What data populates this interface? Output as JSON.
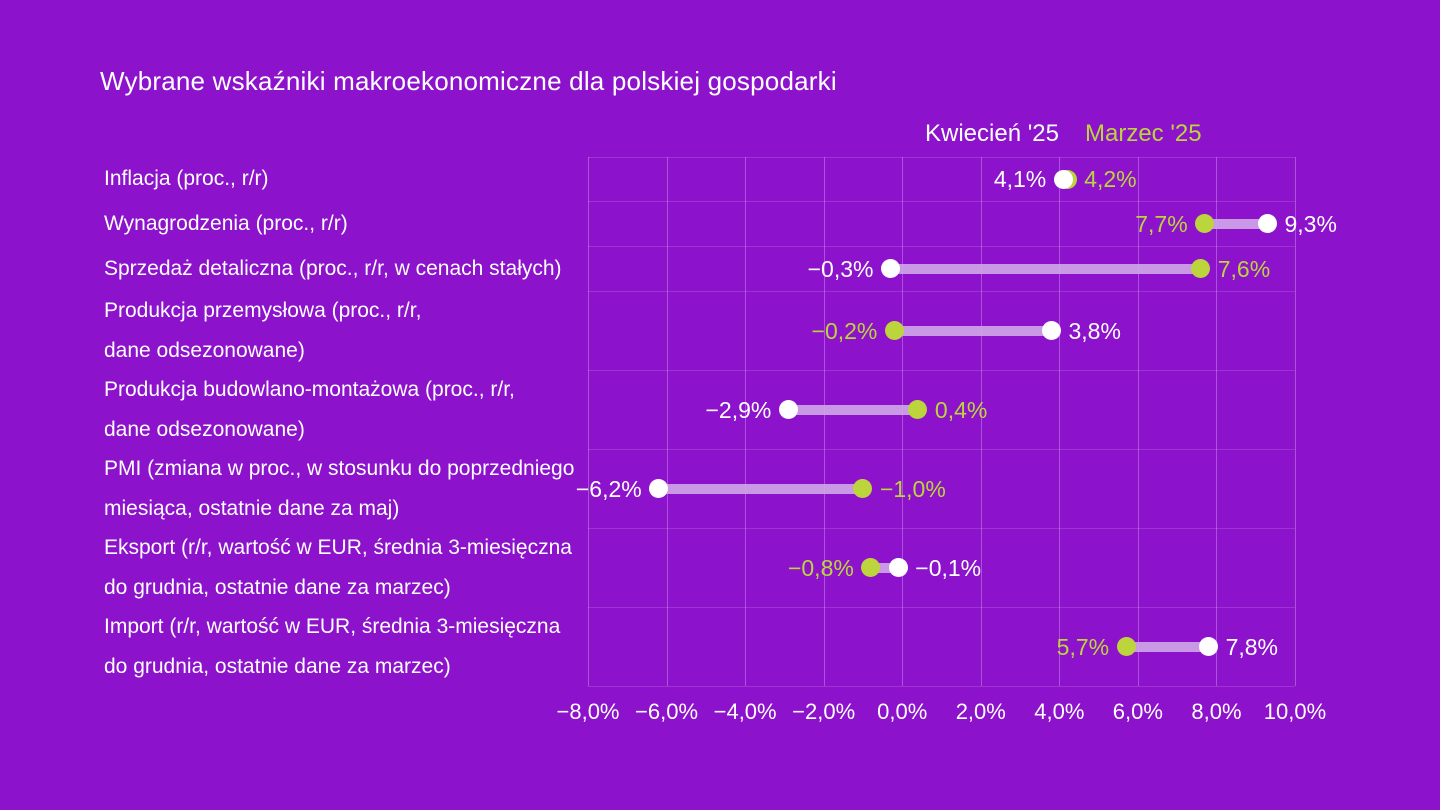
{
  "title": "Wybrane wskaźniki makroekonomiczne dla polskiej gospodarki",
  "legend": {
    "april_label": "Kwiecień '25",
    "march_label": "Marzec '25"
  },
  "colors": {
    "background": "#8c12cb",
    "april_dot": "#ffffff",
    "march_dot": "#bcd53d",
    "bar": "#cfa9e8",
    "text": "#ffffff"
  },
  "chart_data": {
    "type": "dumbbell",
    "title": "Wybrane wskaźniki makroekonomiczne dla polskiej gospodarki",
    "series": [
      "Kwiecień '25",
      "Marzec '25"
    ],
    "unit": "percent",
    "x_axis": {
      "min": -8,
      "max": 10,
      "step": 2,
      "tick_labels": [
        "−8,0%",
        "−6,0%",
        "−4,0%",
        "−2,0%",
        "0,0%",
        "2,0%",
        "4,0%",
        "6,0%",
        "8,0%",
        "10,0%"
      ]
    },
    "rows": [
      {
        "label_lines": [
          "Inflacja (proc., r/r)"
        ],
        "kwiecien": 4.1,
        "marzec": 4.2,
        "kwiecien_label": "4,1%",
        "marzec_label": "4,2%"
      },
      {
        "label_lines": [
          "Wynagrodzenia (proc., r/r)"
        ],
        "kwiecien": 9.3,
        "marzec": 7.7,
        "kwiecien_label": "9,3%",
        "marzec_label": "7,7%"
      },
      {
        "label_lines": [
          "Sprzedaż detaliczna (proc., r/r, w cenach stałych)"
        ],
        "kwiecien": -0.3,
        "marzec": 7.6,
        "kwiecien_label": "−0,3%",
        "marzec_label": "7,6%"
      },
      {
        "label_lines": [
          "Produkcja przemysłowa (proc., r/r,",
          "dane odsezonowane)"
        ],
        "kwiecien": 3.8,
        "marzec": -0.2,
        "kwiecien_label": "3,8%",
        "marzec_label": "−0,2%"
      },
      {
        "label_lines": [
          "Produkcja budowlano-montażowa (proc., r/r,",
          "dane odsezonowane)"
        ],
        "kwiecien": -2.9,
        "marzec": 0.4,
        "kwiecien_label": "−2,9%",
        "marzec_label": "0,4%"
      },
      {
        "label_lines": [
          "PMI (zmiana w proc., w stosunku do poprzedniego",
          "miesiąca, ostatnie dane za maj)"
        ],
        "kwiecien": -6.2,
        "marzec": -1.0,
        "kwiecien_label": "−6,2%",
        "marzec_label": "−1,0%"
      },
      {
        "label_lines": [
          "Eksport (r/r, wartość w EUR, średnia 3-miesięczna",
          "do grudnia, ostatnie dane za marzec)"
        ],
        "kwiecien": -0.1,
        "marzec": -0.8,
        "kwiecien_label": "−0,1%",
        "marzec_label": "−0,8%"
      },
      {
        "label_lines": [
          "Import (r/r, wartość w EUR, średnia 3-miesięczna",
          "do grudnia, ostatnie dane za marzec)"
        ],
        "kwiecien": 7.8,
        "marzec": 5.7,
        "kwiecien_label": "7,8%",
        "marzec_label": "5,7%"
      }
    ]
  }
}
